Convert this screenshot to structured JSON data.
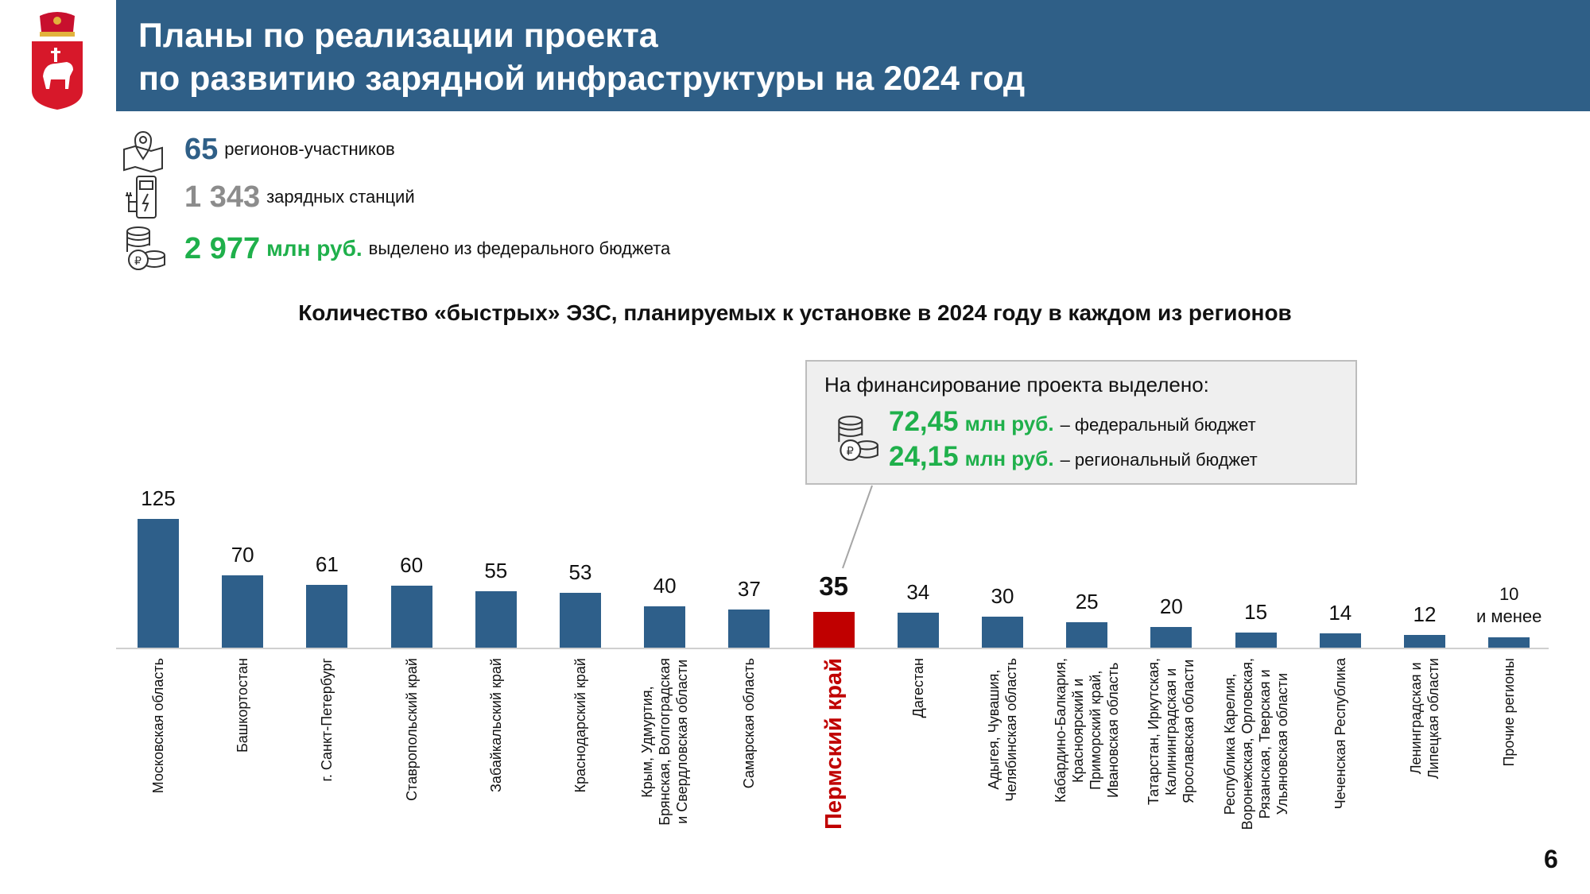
{
  "header": {
    "title": "Планы по реализации проекта\nпо развитию зарядной инфраструктуры на 2024 год"
  },
  "stats": [
    {
      "icon": "location-pin-icon",
      "number": "65",
      "unit": "",
      "text": "регионов-участников",
      "color": "#2f5f87"
    },
    {
      "icon": "charging-station-icon",
      "number": "1 343",
      "unit": "",
      "text": "зарядных станций",
      "color": "#8c8c8c"
    },
    {
      "icon": "coins-ruble-icon",
      "number": "2 977",
      "unit": "млн руб.",
      "text": "выделено из федерального бюджета",
      "color": "#1fb04b"
    }
  ],
  "callout": {
    "heading": "На финансирование проекта выделено:",
    "rows": [
      {
        "amount": "72,45",
        "unit": "млн руб.",
        "text": "– федеральный бюджет"
      },
      {
        "amount": "24,15",
        "unit": "млн руб.",
        "text": "– региональный бюджет"
      }
    ]
  },
  "page_number": "6",
  "colors": {
    "bar": "#2e5f8a",
    "highlight": "#c00000",
    "green": "#1fb04b",
    "header": "#2f5f87"
  },
  "chart_data": {
    "type": "bar",
    "title": "Количество «быстрых» ЭЗС, планируемых к установке в 2024 году в каждом из регионов",
    "categories": [
      "Московская область",
      "Башкортостан",
      "г. Санкт-Петербург",
      "Ставропольский край",
      "Забайкальский край",
      "Краснодарский край",
      "Крым, Удмуртия,\nБрянская, Волгоградская\nи Свердловская области",
      "Самарская область",
      "Пермский край",
      "Дагестан",
      "Адыгея, Чувашия,\nЧелябинская область",
      "Кабардино-Балкария,\nКрасноярский и\nПриморский край,\nИвановская область",
      "Татарстан, Иркутская,\nКалининградская и\nЯрославская области",
      "Республика Карелия,\nВоронежская, Орловская,\nРязанская, Тверская и\nУльяновская области",
      "Чеченская Республика",
      "Ленинградская и\nЛипецкая области",
      "Прочие регионы"
    ],
    "values": [
      125,
      70,
      61,
      60,
      55,
      53,
      40,
      37,
      35,
      34,
      30,
      25,
      20,
      15,
      14,
      12,
      10
    ],
    "value_labels": [
      "125",
      "70",
      "61",
      "60",
      "55",
      "53",
      "40",
      "37",
      "35",
      "34",
      "30",
      "25",
      "20",
      "15",
      "14",
      "12",
      "10\nи менее"
    ],
    "highlight_index": 8,
    "xlabel": "",
    "ylabel": "",
    "ylim": [
      0,
      125
    ]
  }
}
